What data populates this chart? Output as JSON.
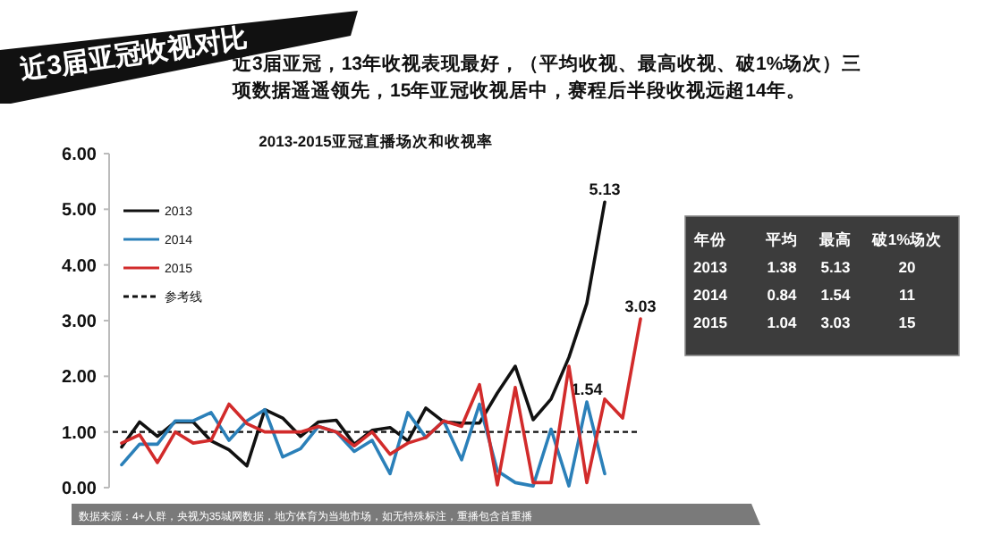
{
  "chart_data": [
    {
      "type": "line",
      "title": "2013-2015亚冠直播场次和收视率",
      "annotations": [
        "近3届亚冠收视对比",
        "近3届亚冠，13年收视表现最好，（平均收视、最高收视、破1%场次）三项数据遥遥领先，15年亚冠收视居中，赛程后半段收视远超14年。",
        "数据来源：4+人群，央视为35城网数据，地方体育为当地市场，如无特殊标注，重播包含首重播"
      ],
      "categories": [
        null,
        null,
        null,
        null,
        null,
        null,
        null,
        null,
        null,
        null,
        null,
        null,
        null,
        null,
        null,
        null,
        null,
        null,
        null,
        null,
        null,
        null,
        null,
        null,
        null,
        null,
        null,
        null,
        null,
        null
      ],
      "series": [
        {
          "name": "2013",
          "color": "#111111",
          "values": [
            0.73,
            1.18,
            0.92,
            1.18,
            1.18,
            0.84,
            0.68,
            0.39,
            1.4,
            1.25,
            0.92,
            1.18,
            1.21,
            0.78,
            1.03,
            1.08,
            0.84,
            1.43,
            1.18,
            1.16,
            1.16,
            1.7,
            2.18,
            1.22,
            1.59,
            2.34,
            3.31,
            5.13,
            null,
            null
          ],
          "value_labels": [
            null,
            null,
            null,
            null,
            null,
            null,
            null,
            null,
            null,
            null,
            null,
            null,
            null,
            null,
            null,
            null,
            null,
            null,
            null,
            null,
            null,
            null,
            null,
            null,
            null,
            null,
            null,
            "5.13",
            null,
            null
          ]
        },
        {
          "name": "2014",
          "color": "#2b80b9",
          "values": [
            0.41,
            0.78,
            0.78,
            1.2,
            1.2,
            1.35,
            0.85,
            1.2,
            1.4,
            0.55,
            0.7,
            1.1,
            1.0,
            0.65,
            0.85,
            0.25,
            1.35,
            0.9,
            1.2,
            0.5,
            1.5,
            0.3,
            0.09,
            0.03,
            1.05,
            0.03,
            1.54,
            0.25,
            null,
            null
          ],
          "value_labels": [
            null,
            null,
            null,
            null,
            null,
            null,
            null,
            null,
            null,
            null,
            null,
            null,
            null,
            null,
            null,
            null,
            null,
            null,
            null,
            null,
            null,
            null,
            null,
            null,
            null,
            null,
            "1.54",
            null,
            null,
            null
          ]
        },
        {
          "name": "2015",
          "color": "#d22b2b",
          "values": [
            0.8,
            0.95,
            0.45,
            1.0,
            0.8,
            0.85,
            1.5,
            1.15,
            1.0,
            1.0,
            1.0,
            1.1,
            1.0,
            0.75,
            1.0,
            0.6,
            0.8,
            0.9,
            1.2,
            1.1,
            1.85,
            0.05,
            1.8,
            0.09,
            0.09,
            2.18,
            0.09,
            1.59,
            1.25,
            3.03
          ],
          "value_labels": [
            null,
            null,
            null,
            null,
            null,
            null,
            null,
            null,
            null,
            null,
            null,
            null,
            null,
            null,
            null,
            null,
            null,
            null,
            null,
            null,
            null,
            null,
            null,
            null,
            null,
            null,
            null,
            null,
            null,
            "3.03"
          ]
        }
      ],
      "ref_lines": [
        {
          "axis": "y",
          "value": 1,
          "label": "参考线",
          "color": "#111111",
          "line_style": "dashed"
        }
      ],
      "ylim": [
        0,
        6
      ],
      "yticks": [
        {
          "value": 0,
          "label": "0.00"
        },
        {
          "value": 1,
          "label": "1.00"
        },
        {
          "value": 2,
          "label": "2.00"
        },
        {
          "value": 3,
          "label": "3.00"
        },
        {
          "value": 4,
          "label": "4.00"
        },
        {
          "value": 5,
          "label": "5.00"
        },
        {
          "value": 6,
          "label": "6.00"
        }
      ],
      "tick_labels": "y",
      "grid": false,
      "legend": "top left",
      "marker": "none",
      "line_style": "solid"
    },
    {
      "type": "other",
      "annotations": [
        "年份",
        "平均",
        "最高",
        "破1%场次",
        "2013",
        "1.38",
        "5.13",
        "20",
        "2014",
        "0.84",
        "1.54",
        "11",
        "2015",
        "1.04",
        "3.03",
        "15"
      ]
    }
  ]
}
